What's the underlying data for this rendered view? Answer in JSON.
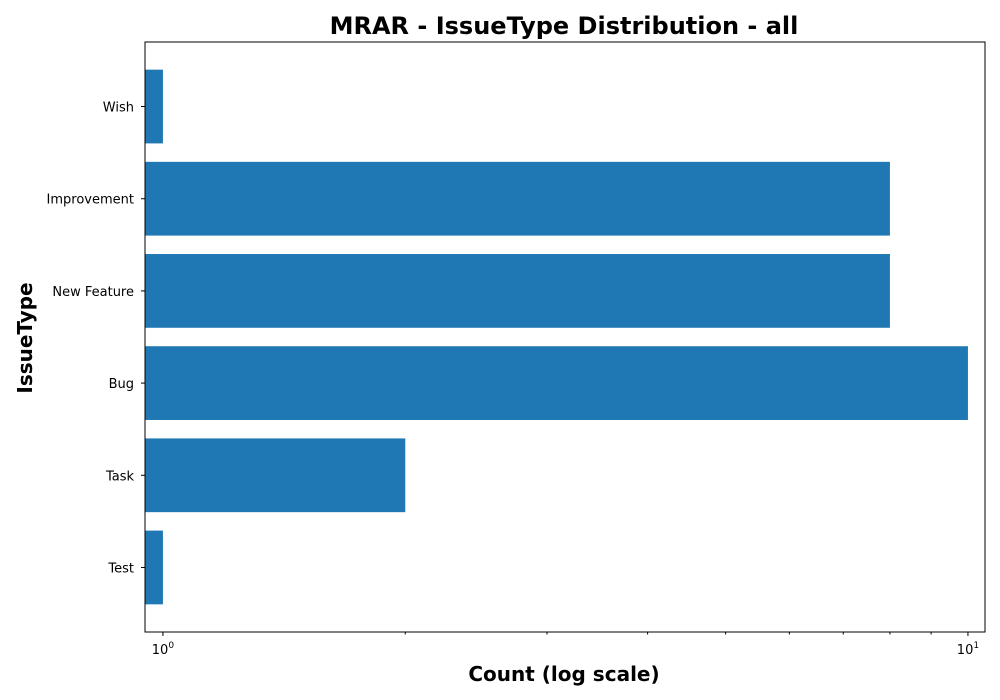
{
  "chart_data": {
    "type": "bar",
    "orientation": "horizontal",
    "title": "MRAR - IssueType Distribution - all",
    "xlabel": "Count (log scale)",
    "ylabel": "IssueType",
    "xscale": "log",
    "xlim": [
      0.95,
      10.5
    ],
    "x_tick_labels": [
      {
        "base": "10",
        "exp": "0",
        "value": 1
      },
      {
        "base": "10",
        "exp": "1",
        "value": 10
      }
    ],
    "categories": [
      "Test",
      "Task",
      "Bug",
      "New Feature",
      "Improvement",
      "Wish"
    ],
    "values": [
      1,
      2,
      10,
      8,
      8,
      1
    ],
    "bar_color": "#1f77b4",
    "grid": false
  }
}
